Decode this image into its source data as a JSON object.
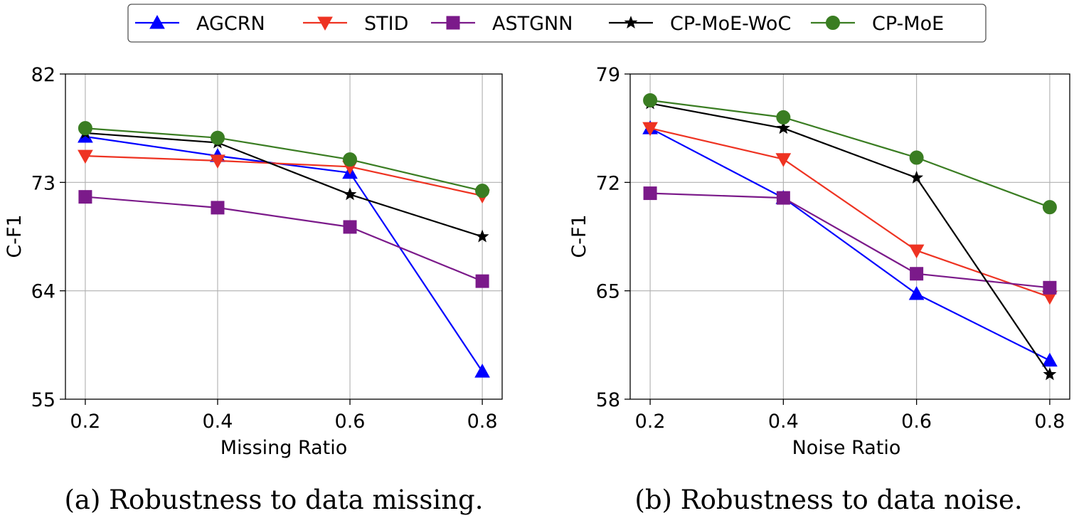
{
  "legend": [
    {
      "name": "AGCRN",
      "color": "#0000ff",
      "marker": "triangle-up"
    },
    {
      "name": "STID",
      "color": "#ee3322",
      "marker": "triangle-down"
    },
    {
      "name": "ASTGNN",
      "color": "#7b1a8a",
      "marker": "square"
    },
    {
      "name": "CP-MoE-WoC",
      "color": "#000000",
      "marker": "star"
    },
    {
      "name": "CP-MoE",
      "color": "#3a7d22",
      "marker": "circle"
    }
  ],
  "chart_data": [
    {
      "type": "line",
      "id": "a",
      "caption": "(a) Robustness to data missing.",
      "xlabel": "Missing Ratio",
      "ylabel": "C-F1",
      "x": [
        0.2,
        0.4,
        0.6,
        0.8
      ],
      "xticks": [
        "0.2",
        "0.4",
        "0.6",
        "0.8"
      ],
      "yticks": [
        55,
        64,
        73,
        82
      ],
      "ylim": [
        55,
        82
      ],
      "xlim": [
        0.17,
        0.83
      ],
      "grid": true,
      "series": [
        {
          "name": "AGCRN",
          "values": [
            76.8,
            75.2,
            73.8,
            57.3
          ]
        },
        {
          "name": "STID",
          "values": [
            75.2,
            74.8,
            74.3,
            71.9
          ]
        },
        {
          "name": "ASTGNN",
          "values": [
            71.8,
            70.9,
            69.3,
            64.8
          ]
        },
        {
          "name": "CP-MoE-WoC",
          "values": [
            77.1,
            76.3,
            72.0,
            68.5
          ]
        },
        {
          "name": "CP-MoE",
          "values": [
            77.5,
            76.7,
            74.9,
            72.3
          ]
        }
      ]
    },
    {
      "type": "line",
      "id": "b",
      "caption": "(b) Robustness to data noise.",
      "xlabel": "Noise Ratio",
      "ylabel": "C-F1",
      "x": [
        0.2,
        0.4,
        0.6,
        0.8
      ],
      "xticks": [
        "0.2",
        "0.4",
        "0.6",
        "0.8"
      ],
      "yticks": [
        58,
        65,
        72,
        79
      ],
      "ylim": [
        58,
        79
      ],
      "xlim": [
        0.17,
        0.83
      ],
      "grid": true,
      "series": [
        {
          "name": "AGCRN",
          "values": [
            75.5,
            71.0,
            64.8,
            60.5
          ]
        },
        {
          "name": "STID",
          "values": [
            75.5,
            73.5,
            67.6,
            64.6
          ]
        },
        {
          "name": "ASTGNN",
          "values": [
            71.3,
            71.0,
            66.1,
            65.2
          ]
        },
        {
          "name": "CP-MoE-WoC",
          "values": [
            77.1,
            75.5,
            72.3,
            59.6
          ]
        },
        {
          "name": "CP-MoE",
          "values": [
            77.3,
            76.2,
            73.6,
            70.4
          ]
        }
      ]
    }
  ]
}
